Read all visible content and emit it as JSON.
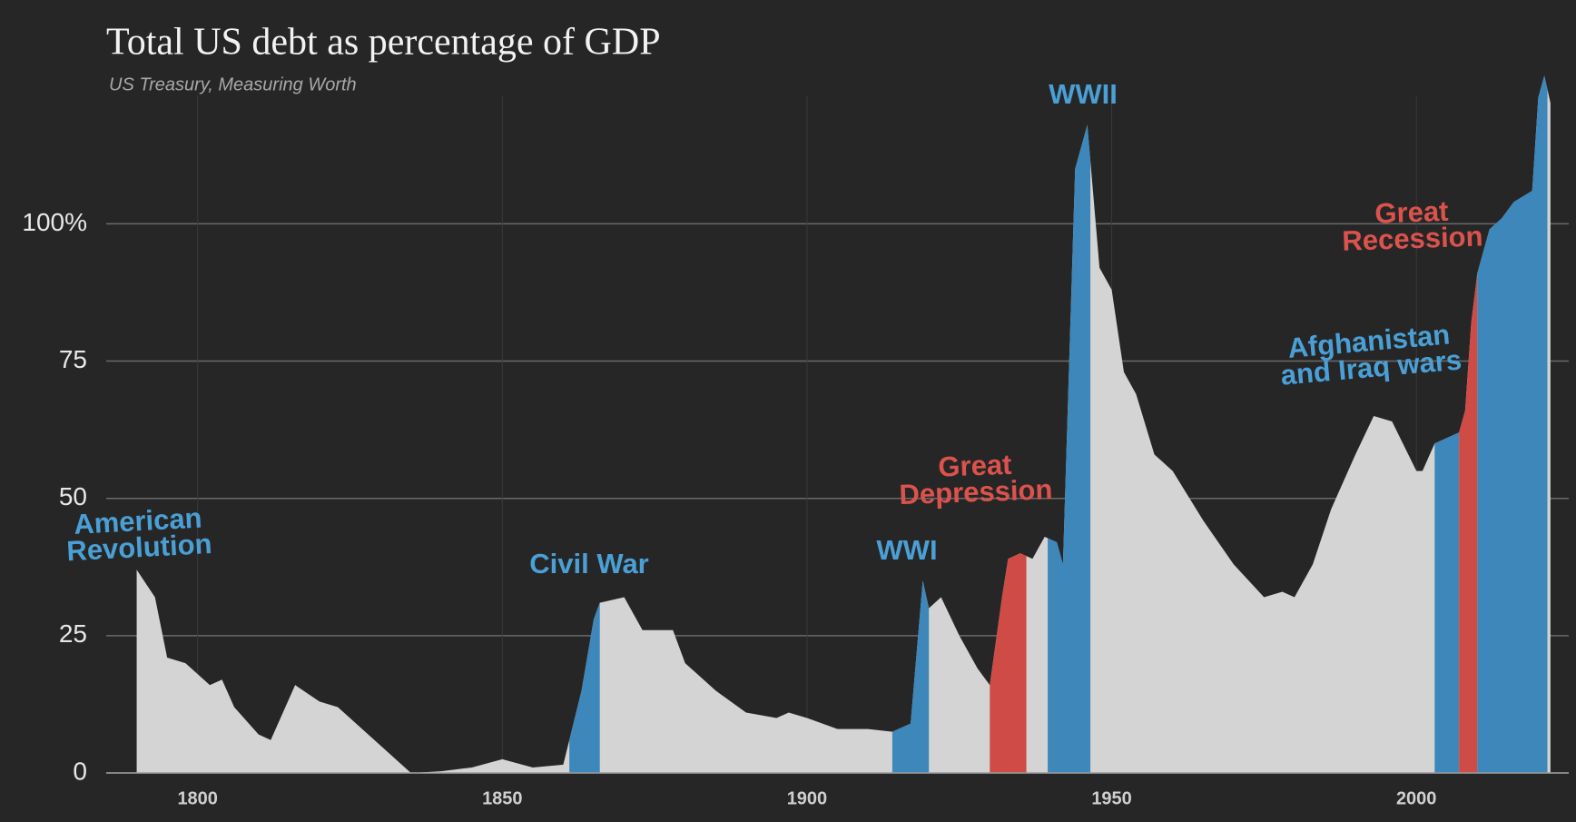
{
  "chart_data": {
    "type": "area",
    "title": "Total US debt as percentage of GDP",
    "subtitle": "US Treasury, Measuring Worth",
    "x": [
      1790,
      1793,
      1795,
      1798,
      1800,
      1802,
      1804,
      1806,
      1810,
      1812,
      1816,
      1820,
      1823,
      1830,
      1835,
      1840,
      1845,
      1850,
      1855,
      1860,
      1863,
      1865,
      1866,
      1870,
      1873,
      1878,
      1880,
      1885,
      1890,
      1895,
      1897,
      1900,
      1905,
      1910,
      1914,
      1917,
      1919,
      1920,
      1922,
      1925,
      1928,
      1930,
      1932,
      1933,
      1935,
      1937,
      1939,
      1941,
      1942,
      1944,
      1946,
      1947,
      1948,
      1950,
      1952,
      1954,
      1957,
      1960,
      1965,
      1970,
      1975,
      1978,
      1980,
      1983,
      1986,
      1990,
      1993,
      1996,
      2000,
      2001,
      2003,
      2007,
      2008,
      2009,
      2010,
      2012,
      2014,
      2016,
      2019,
      2020,
      2021,
      2022
    ],
    "values": [
      37,
      32,
      21,
      20,
      18,
      16,
      17,
      12,
      7,
      6,
      16,
      13,
      12,
      5,
      0,
      0.3,
      1,
      2.5,
      1,
      1.5,
      15,
      28,
      31,
      32,
      26,
      26,
      20,
      15,
      11,
      10,
      11,
      10,
      8,
      8,
      7.5,
      9,
      35,
      30,
      32,
      25,
      19,
      16,
      32,
      39,
      40,
      39,
      43,
      42,
      38,
      110,
      118,
      105,
      92,
      88,
      73,
      69,
      58,
      55,
      46,
      38,
      32,
      33,
      32,
      38,
      48,
      58,
      65,
      64,
      55,
      55,
      60,
      62,
      66,
      82,
      91,
      99,
      101,
      104,
      106,
      123,
      127,
      122
    ],
    "color": "#d4d4d4",
    "highlights": [
      {
        "start": 1861,
        "end": 1866,
        "color": "#3d87ba"
      },
      {
        "start": 1914,
        "end": 1920,
        "color": "#3d87ba"
      },
      {
        "start": 1930,
        "end": 1936,
        "color": "#cf4b45"
      },
      {
        "start": 1939.5,
        "end": 1946.5,
        "color": "#3d87ba"
      },
      {
        "start": 2003,
        "end": 2007,
        "color": "#3d87ba"
      },
      {
        "start": 2007,
        "end": 2010,
        "color": "#cf4b45"
      },
      {
        "start": 2010,
        "end": 2021.5,
        "color": "#3d87ba"
      }
    ],
    "annotations": [
      {
        "lines": [
          "American",
          "Revolution"
        ],
        "color": "#4aa0d6"
      },
      {
        "lines": [
          "Civil War"
        ],
        "color": "#4aa0d6"
      },
      {
        "lines": [
          "WWI"
        ],
        "color": "#4aa0d6"
      },
      {
        "lines": [
          "Great",
          "Depression"
        ],
        "color": "#dc524c"
      },
      {
        "lines": [
          "WWII"
        ],
        "color": "#4aa0d6"
      },
      {
        "lines": [
          "Afghanistan",
          "and Iraq wars"
        ],
        "color": "#4aa0d6"
      },
      {
        "lines": [
          "Great",
          "Recession"
        ],
        "color": "#dc524c"
      }
    ],
    "xlim": [
      1785,
      2025
    ],
    "xticks": [
      1800,
      1850,
      1900,
      1950,
      2000
    ],
    "ylim": [
      0,
      130
    ],
    "yticks": [
      0,
      25,
      50,
      75,
      {
        "value": 100,
        "label": "100%"
      }
    ],
    "grid": true
  }
}
